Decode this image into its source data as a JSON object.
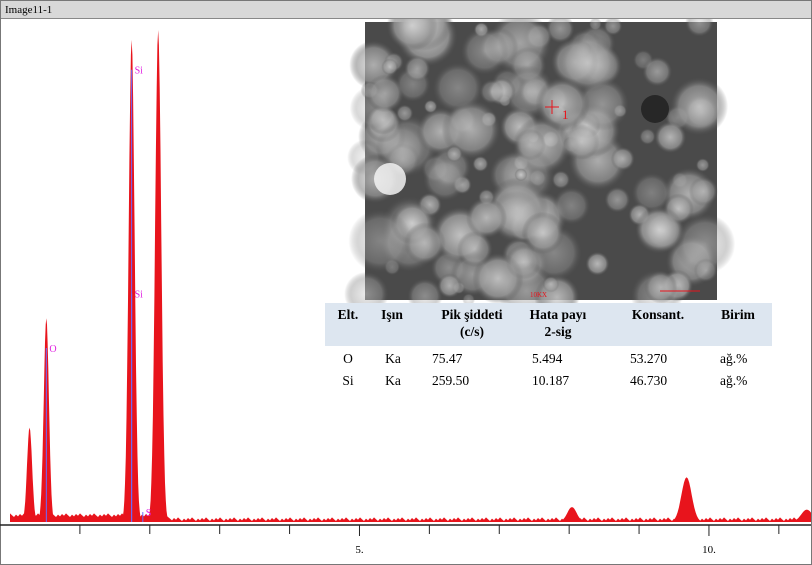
{
  "window": {
    "title": "Image11-1"
  },
  "chart_data": {
    "type": "spectrum",
    "xlim": [
      0,
      11.46
    ],
    "ylim": [
      0,
      100
    ],
    "xticks": [
      {
        "value": 5,
        "label": "5."
      },
      {
        "value": 10,
        "label": "10."
      }
    ],
    "xminor": [
      1,
      2,
      3,
      4,
      6,
      7,
      8,
      9,
      11
    ],
    "color": "#e8141c",
    "peaks": {
      "x": [
        0.28,
        0.52,
        1.74,
        2.12,
        8.04,
        9.68,
        11.4
      ],
      "values": [
        19,
        41,
        97,
        99,
        3,
        9,
        2.5
      ]
    },
    "markers": [
      {
        "label": "O",
        "x": 0.52,
        "y": 35
      },
      {
        "label": "Si",
        "x": 1.74,
        "y": 91
      },
      {
        "label": "Si",
        "x": 1.74,
        "y": 46
      },
      {
        "label": "S",
        "x": 1.9,
        "y": 2
      }
    ]
  },
  "image": {
    "scale": "10KX",
    "point": "1"
  },
  "table": {
    "header": [
      "Elt.",
      "Işın",
      "Pik şiddeti (c/s)",
      "Hata payı 2-sig",
      "Konsant.",
      "Birim"
    ],
    "rows": [
      [
        "O",
        "Ka",
        "75.47",
        "5.494",
        "53.270",
        "ağ.%"
      ],
      [
        "Si",
        "Ka",
        "259.50",
        "10.187",
        "46.730",
        "ağ.%"
      ]
    ]
  }
}
